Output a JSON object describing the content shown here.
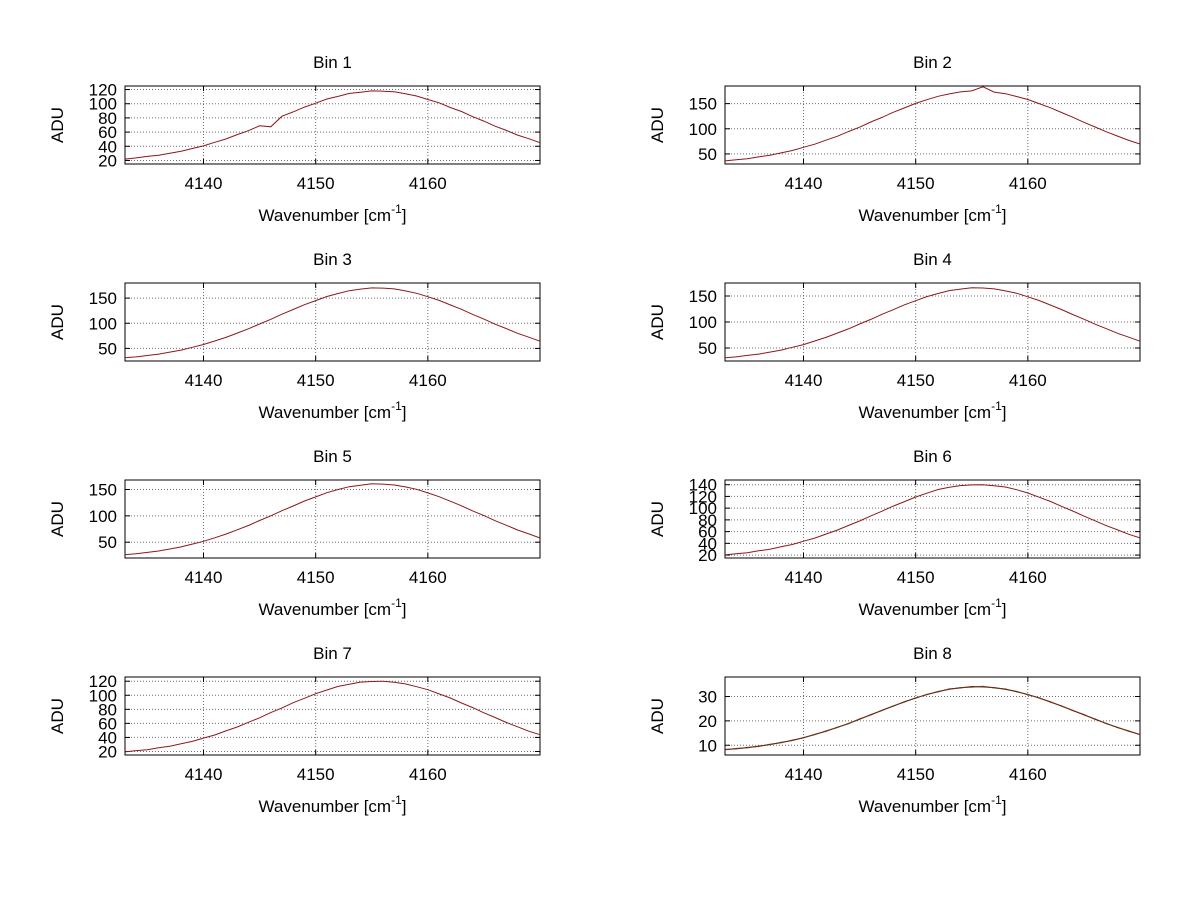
{
  "figure": {
    "background": "#ffffff",
    "shared": {
      "ylabel": "ADU",
      "xlabel_main": "Wavenumber [cm",
      "xlabel_sup": "-1",
      "xlabel_close": "]",
      "grid": true,
      "axis_color": "#000000",
      "grid_color": "#6e6e6e",
      "x": [
        4133,
        4134,
        4135,
        4136,
        4137,
        4138,
        4139,
        4140,
        4141,
        4142,
        4143,
        4144,
        4145,
        4146,
        4147,
        4148,
        4149,
        4150,
        4151,
        4152,
        4153,
        4154,
        4155,
        4156,
        4157,
        4158,
        4159,
        4160,
        4161,
        4162,
        4163,
        4164,
        4165,
        4166,
        4167,
        4168,
        4169,
        4170
      ]
    }
  },
  "chart_data": [
    {
      "type": "line",
      "title": "Bin 1",
      "xlim": [
        4133,
        4170
      ],
      "ylim": [
        15,
        125
      ],
      "xticks": [
        4140,
        4150,
        4160
      ],
      "yticks": [
        20,
        40,
        60,
        80,
        100,
        120
      ],
      "series": [
        {
          "name": "spectrum-red",
          "color": "#8b1a1a",
          "values": [
            21.9,
            23.6,
            25.7,
            27.4,
            30.3,
            33.0,
            36.9,
            40.5,
            45.6,
            50.2,
            56.4,
            62.0,
            68.9,
            67.5,
            82.4,
            88.5,
            95.2,
            100.7,
            106.6,
            110.4,
            114.5,
            116.3,
            118.1,
            117.6,
            116.9,
            114.0,
            110.9,
            106.0,
            101.3,
            94.7,
            89.0,
            81.7,
            75.5,
            68.3,
            62.4,
            55.8,
            50.7,
            45.1
          ]
        }
      ]
    },
    {
      "type": "line",
      "title": "Bin 2",
      "xlim": [
        4133,
        4170
      ],
      "ylim": [
        30,
        185
      ],
      "xticks": [
        4140,
        4150,
        4160
      ],
      "yticks": [
        50,
        100,
        150
      ],
      "series": [
        {
          "name": "spectrum-red",
          "color": "#8b1a1a",
          "values": [
            36.2,
            38.6,
            40.6,
            44.1,
            47.3,
            52.1,
            56.8,
            63.1,
            69.4,
            77.3,
            85.1,
            94.3,
            103.2,
            113.4,
            122.6,
            132.7,
            141.5,
            150.5,
            157.8,
            164.6,
            169.3,
            173.2,
            175.3,
            183.5,
            172.8,
            169.7,
            164.2,
            158.2,
            150.1,
            141.9,
            132.3,
            123.0,
            112.9,
            103.6,
            93.9,
            85.5,
            76.9,
            69.8
          ]
        }
      ]
    },
    {
      "type": "line",
      "title": "Bin 3",
      "xlim": [
        4133,
        4170
      ],
      "ylim": [
        25,
        180
      ],
      "xticks": [
        4140,
        4150,
        4160
      ],
      "yticks": [
        50,
        100,
        150
      ],
      "series": [
        {
          "name": "spectrum-red",
          "color": "#8b1a1a",
          "values": [
            31.6,
            33.2,
            36.0,
            38.7,
            42.7,
            46.7,
            52.2,
            57.7,
            64.8,
            71.9,
            80.5,
            88.9,
            98.6,
            107.9,
            118.0,
            127.3,
            136.9,
            145.1,
            153.2,
            159.2,
            164.7,
            167.8,
            170.3,
            169.9,
            168.2,
            164.3,
            159.6,
            152.8,
            145.5,
            136.5,
            127.7,
            117.6,
            108.3,
            98.2,
            89.3,
            80.1,
            72.3,
            64.4
          ]
        }
      ]
    },
    {
      "type": "line",
      "title": "Bin 4",
      "xlim": [
        4133,
        4170
      ],
      "ylim": [
        25,
        175
      ],
      "xticks": [
        4140,
        4150,
        4160
      ],
      "yticks": [
        50,
        100,
        150
      ],
      "series": [
        {
          "name": "spectrum-red",
          "color": "#8b1a1a",
          "values": [
            31.3,
            32.9,
            35.7,
            38.2,
            42.1,
            46.0,
            51.3,
            56.6,
            63.4,
            70.3,
            78.6,
            86.7,
            96.1,
            105.0,
            114.8,
            123.7,
            133.1,
            141.0,
            148.9,
            154.9,
            160.3,
            163.2,
            165.7,
            165.3,
            163.6,
            159.9,
            155.3,
            148.5,
            141.4,
            132.7,
            124.1,
            114.4,
            105.4,
            95.7,
            87.1,
            78.2,
            70.7,
            63.0
          ]
        }
      ]
    },
    {
      "type": "line",
      "title": "Bin 5",
      "xlim": [
        4133,
        4170
      ],
      "ylim": [
        20,
        168
      ],
      "xticks": [
        4140,
        4150,
        4160
      ],
      "yticks": [
        50,
        100,
        150
      ],
      "series": [
        {
          "name": "spectrum-red",
          "color": "#8b1a1a",
          "values": [
            26.3,
            27.9,
            30.7,
            33.2,
            37.1,
            41.0,
            46.3,
            51.6,
            58.4,
            65.3,
            73.6,
            81.7,
            91.1,
            100.0,
            109.8,
            118.7,
            128.1,
            136.0,
            143.9,
            149.9,
            155.3,
            158.2,
            160.7,
            160.3,
            158.6,
            154.9,
            150.3,
            143.5,
            136.4,
            127.7,
            119.1,
            109.4,
            100.4,
            90.7,
            82.1,
            73.2,
            65.7,
            58.0
          ]
        }
      ]
    },
    {
      "type": "line",
      "title": "Bin 6",
      "xlim": [
        4133,
        4170
      ],
      "ylim": [
        15,
        148
      ],
      "xticks": [
        4140,
        4150,
        4160
      ],
      "yticks": [
        20,
        40,
        60,
        80,
        100,
        120,
        140
      ],
      "series": [
        {
          "name": "spectrum-red",
          "color": "#8b1a1a",
          "values": [
            20.3,
            22.4,
            24.1,
            27.2,
            29.9,
            34.1,
            38.1,
            43.6,
            48.9,
            55.8,
            62.5,
            70.5,
            78.1,
            86.8,
            94.8,
            103.5,
            111.1,
            119.0,
            125.5,
            131.8,
            135.7,
            138.5,
            139.6,
            140.0,
            138.1,
            136.1,
            131.4,
            125.9,
            118.6,
            111.5,
            103.1,
            95.2,
            86.4,
            78.5,
            70.1,
            62.9,
            55.4,
            49.3
          ]
        }
      ]
    },
    {
      "type": "line",
      "title": "Bin 7",
      "xlim": [
        4133,
        4170
      ],
      "ylim": [
        15,
        126
      ],
      "xticks": [
        4140,
        4150,
        4160
      ],
      "yticks": [
        20,
        40,
        60,
        80,
        100,
        120
      ],
      "series": [
        {
          "name": "spectrum-red",
          "color": "#8b1a1a",
          "values": [
            19.4,
            21.3,
            22.6,
            25.2,
            27.5,
            31.1,
            34.4,
            39.0,
            43.5,
            49.3,
            54.8,
            61.6,
            68.0,
            75.4,
            82.0,
            89.4,
            95.7,
            102.3,
            107.5,
            112.6,
            115.8,
            118.8,
            119.6,
            120.0,
            118.4,
            116.2,
            112.2,
            107.9,
            101.9,
            96.1,
            89.0,
            82.4,
            75.0,
            68.4,
            61.2,
            55.2,
            48.9,
            43.9
          ]
        }
      ]
    },
    {
      "type": "line",
      "title": "Bin 8",
      "xlim": [
        4133,
        4170
      ],
      "ylim": [
        6,
        38
      ],
      "xticks": [
        4140,
        4150,
        4160
      ],
      "yticks": [
        10,
        20,
        30
      ],
      "series": [
        {
          "name": "spectrum-cyan",
          "color": "#00a8a8",
          "values": [
            8.2,
            8.6,
            9.0,
            9.6,
            10.3,
            11.1,
            12.0,
            13.1,
            14.4,
            15.8,
            17.3,
            18.9,
            20.7,
            22.5,
            24.3,
            26.1,
            27.8,
            29.4,
            30.8,
            32.0,
            33.0,
            33.6,
            34.0,
            34.0,
            33.6,
            33.0,
            32.0,
            30.8,
            29.4,
            27.8,
            26.1,
            24.3,
            22.5,
            20.7,
            18.9,
            17.3,
            15.8,
            14.4
          ]
        },
        {
          "name": "spectrum-green",
          "color": "#22851f",
          "values": [
            8.1,
            8.7,
            8.9,
            9.7,
            10.2,
            11.2,
            11.9,
            13.2,
            14.3,
            15.9,
            17.2,
            19.0,
            20.6,
            22.6,
            24.2,
            26.2,
            27.7,
            29.5,
            30.7,
            32.1,
            32.9,
            33.7,
            33.8,
            34.2,
            33.5,
            33.1,
            31.9,
            30.9,
            29.3,
            27.9,
            26.0,
            24.4,
            22.4,
            20.8,
            18.8,
            17.4,
            15.7,
            14.5
          ]
        },
        {
          "name": "spectrum-red",
          "color": "#8b1a1a",
          "values": [
            8.3,
            8.5,
            9.1,
            9.5,
            10.4,
            11.0,
            12.1,
            13.0,
            14.5,
            15.7,
            17.4,
            18.8,
            20.8,
            22.4,
            24.4,
            26.0,
            27.9,
            29.3,
            30.9,
            31.9,
            33.1,
            33.5,
            34.1,
            33.9,
            33.7,
            32.9,
            32.1,
            30.7,
            29.5,
            27.7,
            26.2,
            24.2,
            22.6,
            20.6,
            19.0,
            17.2,
            15.9,
            14.3
          ]
        }
      ]
    }
  ]
}
